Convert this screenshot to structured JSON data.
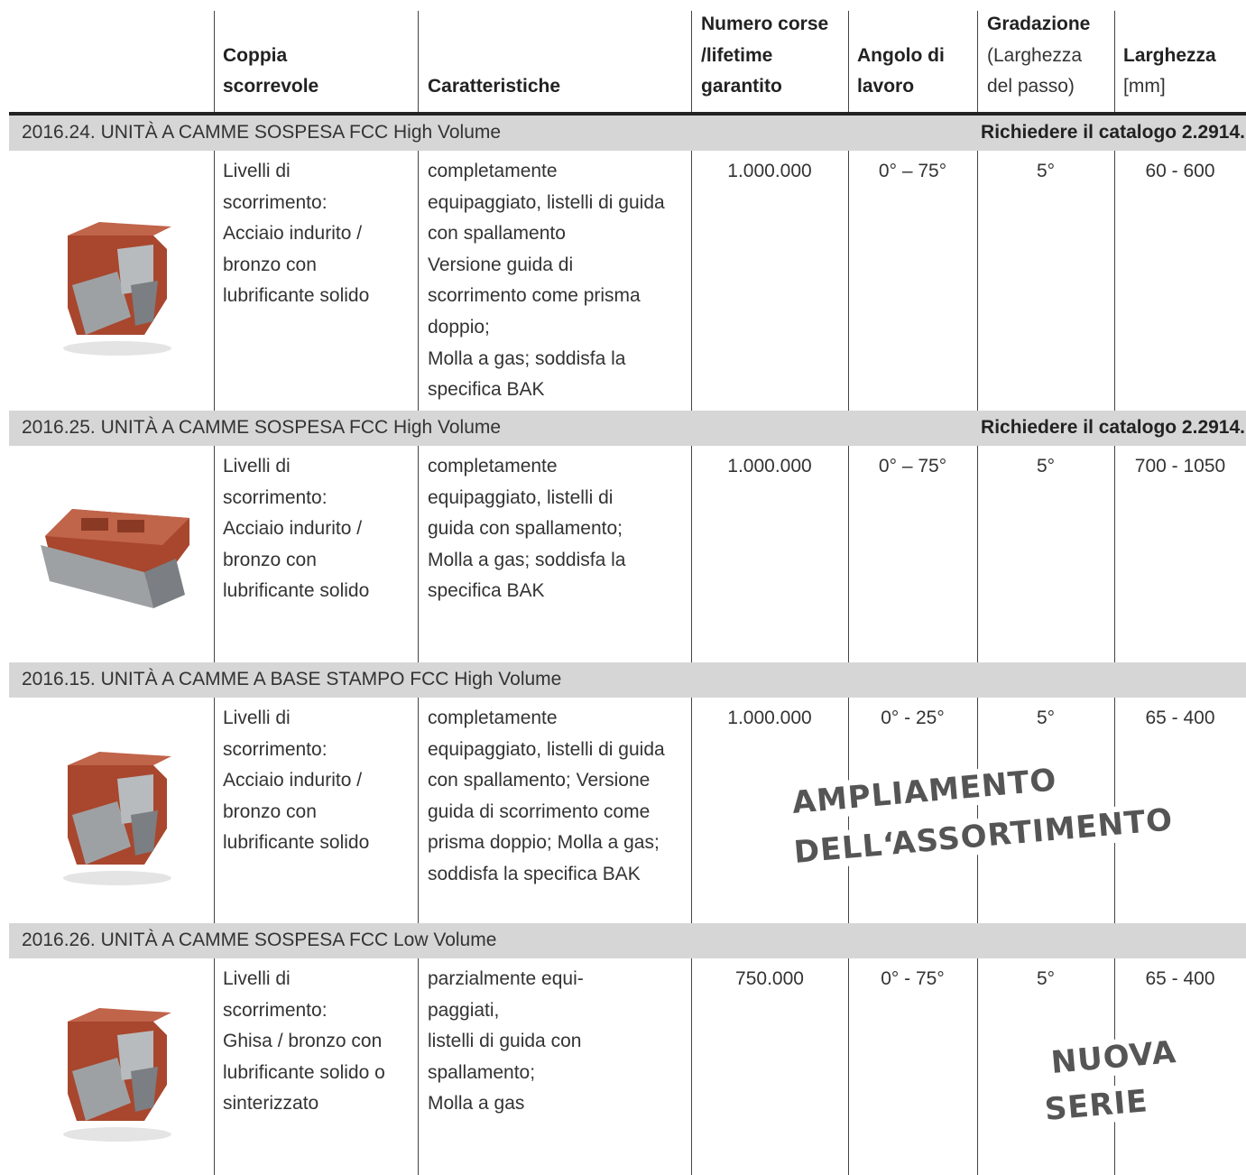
{
  "table": {
    "header": {
      "coppia": [
        "Coppia",
        "scorrevole"
      ],
      "caratteristiche": [
        "Caratteristiche"
      ],
      "corse": [
        "Numero corse",
        "/lifetime",
        "garantito"
      ],
      "angolo": [
        "Angolo di",
        "lavoro"
      ],
      "gradazione": {
        "bold": "Gradazione",
        "detail": [
          "(Larghezza",
          "del passo)"
        ]
      },
      "larghezza": {
        "bold": "Larghezza",
        "detail": [
          "[mm]"
        ]
      }
    },
    "sections": [
      {
        "title": "2016.24. UNITÀ A CAMME SOSPESA FCC High Volume",
        "note": "Richiedere il catalogo 2.2914.!",
        "coppia": [
          "Livelli di",
          "scorrimento:",
          "Acciaio indurito /",
          "bronzo con",
          "lubrificante solido"
        ],
        "caratteristiche": [
          "completamente",
          "equipaggiato, listelli di guida",
          "con spallamento",
          "Versione guida di",
          "scorrimento come prisma",
          "doppio;",
          "Molla a gas; soddisfa la",
          "specifica BAK"
        ],
        "corse": "1.000.000",
        "angolo": "0° – 75°",
        "gradazione": "5°",
        "larghezza": "60 - 600"
      },
      {
        "title": "2016.25. UNITÀ A CAMME SOSPESA FCC High Volume",
        "note": "Richiedere il catalogo 2.2914.!",
        "coppia": [
          "Livelli di",
          "scorrimento:",
          "Acciaio indurito /",
          "bronzo con",
          "lubrificante solido"
        ],
        "caratteristiche": [
          "completamente",
          "equipaggiato, listelli di",
          "guida con spallamento;",
          "Molla a gas; soddisfa la",
          "specifica BAK"
        ],
        "corse": "1.000.000",
        "angolo": "0° – 75°",
        "gradazione": "5°",
        "larghezza": "700 - 1050"
      },
      {
        "title": "2016.15. UNITÀ A CAMME A BASE STAMPO FCC High Volume",
        "coppia": [
          "Livelli di",
          "scorrimento:",
          "Acciaio indurito /",
          "bronzo con",
          "lubrificante solido"
        ],
        "caratteristiche": [
          "completamente",
          "equipaggiato, listelli di guida",
          "con spallamento; Versione",
          "guida di scorrimento come",
          "prisma doppio; Molla a gas;",
          "soddisfa la specifica BAK"
        ],
        "corse": "1.000.000",
        "angolo": "0° - 25°",
        "gradazione": "5°",
        "larghezza": "65 - 400"
      },
      {
        "title": "2016.26. UNITÀ A CAMME SOSPESA FCC Low Volume",
        "coppia": [
          "Livelli di",
          "scorrimento:",
          "Ghisa / bronzo con",
          "lubrificante solido o",
          "sinterizzato"
        ],
        "caratteristiche": [
          "parzialmente equi-",
          "paggiati,",
          "listelli di guida con",
          "spallamento;",
          "Molla a gas"
        ],
        "corse": "750.000",
        "angolo": "0° - 75°",
        "gradazione": "5°",
        "larghezza": "65 - 400"
      }
    ]
  },
  "stamps": {
    "ampliamento": [
      "AMPLIAMENTO",
      "DELL‘ASSORTIMENTO"
    ],
    "nuova_serie": [
      "NUOVA",
      "SERIE"
    ]
  }
}
